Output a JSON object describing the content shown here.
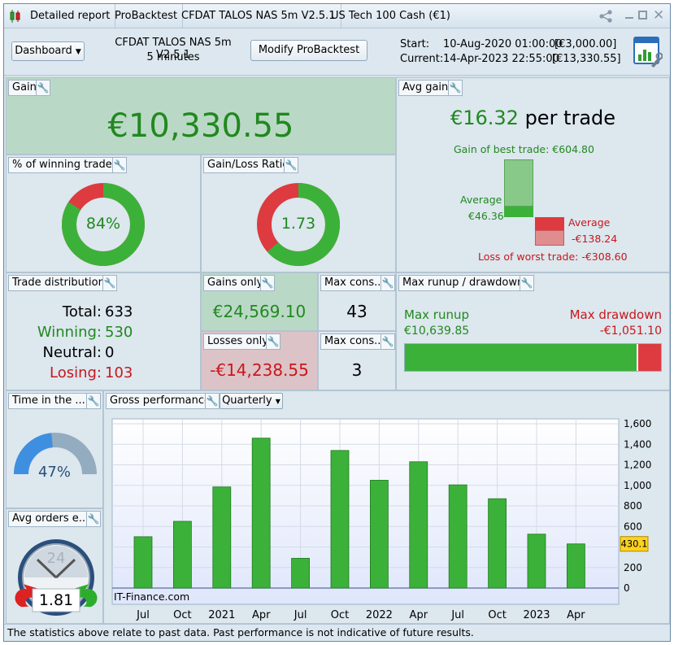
{
  "titlebar": {
    "tabs": [
      "Detailed report",
      "ProBacktest",
      "CFDAT TALOS NAS 5m V2.5.1",
      "US Tech 100 Cash (€1)"
    ]
  },
  "header": {
    "dashboard_label": "Dashboard",
    "strategy_name": "CFDAT TALOS NAS 5m V2.5.1",
    "timeframe": "5 minutes",
    "modify_label": "Modify ProBacktest",
    "start_label": "Start:",
    "start_date": "10-Aug-2020 01:00:00",
    "start_value": "[€3,000.00]",
    "current_label": "Current:",
    "current_date": "14-Apr-2023 22:55:00",
    "current_value": "[€13,330.55]"
  },
  "gain": {
    "title": "Gain",
    "value": "€10,330.55"
  },
  "avg_gain": {
    "title": "Avg gain",
    "value": "€16.32",
    "suffix": "per trade",
    "best_label": "Gain of best trade: €604.80",
    "avg_pos_label": "Average",
    "avg_pos_value": "€46.36",
    "avg_neg_label": "Average",
    "avg_neg_value": "-€138.24",
    "worst_label": "Loss of worst trade: -€308.60"
  },
  "winning_pct": {
    "title": "% of winning trades",
    "value": "84%",
    "fraction": 0.84
  },
  "gain_loss_ratio": {
    "title": "Gain/Loss Ratio",
    "value": "1.73",
    "fraction": 0.634
  },
  "trade_distribution": {
    "title": "Trade distribution",
    "total_label": "Total:",
    "total": "633",
    "winning_label": "Winning:",
    "winning": "530",
    "neutral_label": "Neutral:",
    "neutral": "0",
    "losing_label": "Losing:",
    "losing": "103"
  },
  "gains_only": {
    "title": "Gains only",
    "value": "€24,569.10"
  },
  "losses_only": {
    "title": "Losses only",
    "value": "-€14,238.55"
  },
  "max_cons_win": {
    "title": "Max cons...",
    "value": "43"
  },
  "max_cons_loss": {
    "title": "Max cons...",
    "value": "3"
  },
  "runup": {
    "title": "Max runup / drawdown",
    "runup_label": "Max runup",
    "runup_value": "€10,639.85",
    "drawdown_label": "Max drawdown",
    "drawdown_value": "-€1,051.10",
    "runup_fraction": 0.91
  },
  "time_in_market": {
    "title": "Time in the ...",
    "value": "47%",
    "fraction": 0.47
  },
  "avg_orders": {
    "title": "Avg orders e...",
    "dial_label": "24",
    "value": "1.81"
  },
  "gross_performance": {
    "title": "Gross performance",
    "period_label": "Quarterly",
    "watermark": "IT-Finance.com",
    "current_label": "430.1"
  },
  "chart_data": {
    "type": "bar",
    "categories": [
      "Jul",
      "Oct",
      "2021",
      "Apr",
      "Jul",
      "Oct",
      "2022",
      "Apr",
      "Jul",
      "Oct",
      "2023",
      "Apr"
    ],
    "values": [
      500,
      650,
      985,
      1460,
      290,
      1340,
      1050,
      1230,
      1005,
      870,
      525,
      430
    ],
    "ylim": [
      0,
      1600
    ],
    "yticks": [
      0,
      200,
      400,
      600,
      800,
      1000,
      1200,
      1400,
      1600
    ],
    "ytick_labels": [
      "0",
      "200",
      "400",
      "600",
      "800",
      "1,000",
      "1,200",
      "1,400",
      "1,600"
    ],
    "current_value": 430.1,
    "bar_color": "#3cb13a",
    "grid": true
  },
  "footer": {
    "text": "The statistics above relate to past data. Past performance is not indicative of future results."
  }
}
